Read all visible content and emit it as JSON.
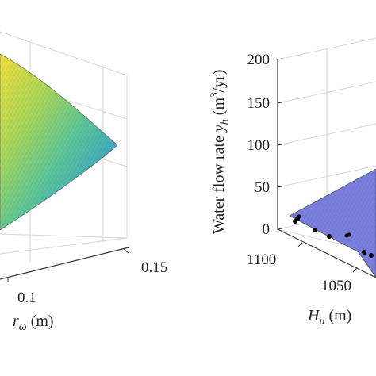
{
  "chart_data": [
    {
      "type": "surface3d",
      "position": "left (partially cropped)",
      "x_axis": {
        "label_symbol": "r",
        "label_subscript": "ω",
        "unit": "(m)",
        "ticks": [
          "0.1",
          "0.15"
        ]
      },
      "colormap": [
        "#f2e13a",
        "#a9d85a",
        "#5cc79a",
        "#3aa4c8",
        "#4a7fd0"
      ],
      "grid": true
    },
    {
      "type": "surface3d",
      "position": "right (partially cropped)",
      "z_axis": {
        "label": "Water flow rate ",
        "label_symbol": "y",
        "label_subscript": "h",
        "unit_prefix": "(m",
        "unit_sup": "3",
        "unit_suffix": "/yr)",
        "ticks": [
          200,
          150,
          100,
          50,
          0
        ],
        "range": [
          0,
          200
        ]
      },
      "x_axis": {
        "label_symbol": "H",
        "label_subscript": "u",
        "unit": "(m)",
        "ticks": [
          "1100",
          "1050"
        ]
      },
      "surface_color": "#7b7fe0",
      "markers": {
        "color": "#000000",
        "description": "observed data points"
      },
      "grid": true
    }
  ]
}
